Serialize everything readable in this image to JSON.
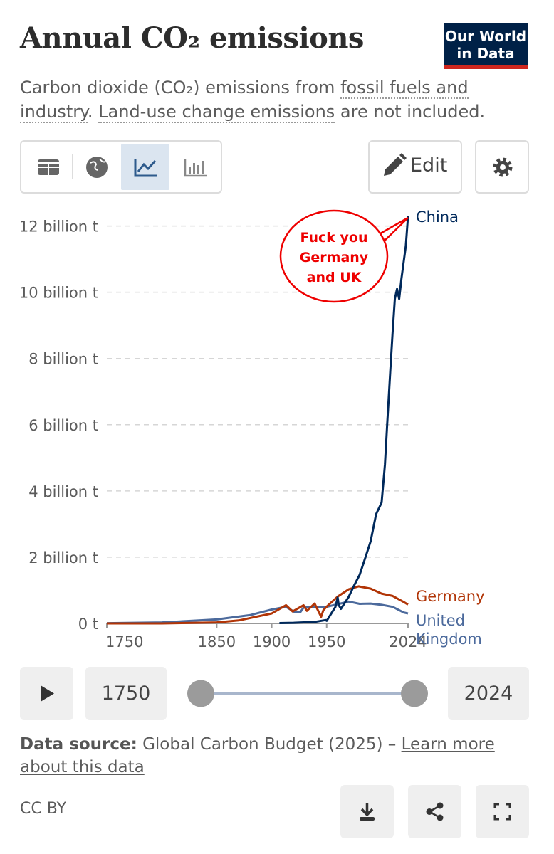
{
  "header": {
    "title": "Annual CO₂ emissions",
    "subtitle": [
      "Carbon dioxide (CO₂) emissions from ",
      "fossil fuels and industry",
      ". ",
      "Land-use change emissions",
      " are not included."
    ]
  },
  "logo": [
    "Our World",
    "in Data"
  ],
  "controls": {
    "edit": "Edit",
    "start": "1750",
    "end": "2024"
  },
  "chart_data": {
    "type": "line",
    "xlim": [
      1750,
      2024
    ],
    "xticks": [
      1750,
      1850,
      1900,
      1950,
      2024
    ],
    "ylim": [
      0,
      12.4
    ],
    "yticks": [
      {
        "value": 0,
        "label": "0 t"
      },
      {
        "value": 2,
        "label": "2 billion t"
      },
      {
        "value": 4,
        "label": "4 billion t"
      },
      {
        "value": 6,
        "label": "6 billion t"
      },
      {
        "value": 8,
        "label": "8 billion t"
      },
      {
        "value": 10,
        "label": "10 billion t"
      },
      {
        "value": 12,
        "label": "12 billion t"
      }
    ],
    "grid": true,
    "series": [
      {
        "name": "China",
        "color": "#00295b",
        "x": [
          1907,
          1920,
          1940,
          1949,
          1950,
          1958,
          1960,
          1961,
          1963,
          1970,
          1975,
          1980,
          1985,
          1990,
          1995,
          2000,
          2003,
          2005,
          2008,
          2010,
          2012,
          2014,
          2016,
          2018,
          2020,
          2022,
          2024
        ],
        "values": [
          0.01,
          0.02,
          0.05,
          0.1,
          0.08,
          0.5,
          0.78,
          0.55,
          0.44,
          0.8,
          1.15,
          1.47,
          1.97,
          2.48,
          3.3,
          3.65,
          4.8,
          6.0,
          7.7,
          8.8,
          9.8,
          10.1,
          9.8,
          10.4,
          10.9,
          11.4,
          12.3
        ]
      },
      {
        "name": "Germany",
        "color": "#b13507",
        "x": [
          1750,
          1800,
          1850,
          1870,
          1900,
          1913,
          1919,
          1929,
          1932,
          1939,
          1945,
          1947,
          1950,
          1960,
          1970,
          1979,
          1990,
          2000,
          2010,
          2020,
          2024
        ],
        "values": [
          0,
          0.001,
          0.03,
          0.09,
          0.3,
          0.55,
          0.36,
          0.55,
          0.38,
          0.6,
          0.2,
          0.4,
          0.51,
          0.81,
          1.03,
          1.12,
          1.05,
          0.9,
          0.83,
          0.65,
          0.57
        ]
      },
      {
        "name": "United Kingdom",
        "color": "#4c6a9c",
        "x": [
          1750,
          1800,
          1850,
          1880,
          1900,
          1913,
          1921,
          1926,
          1929,
          1940,
          1950,
          1960,
          1970,
          1980,
          1990,
          2000,
          2010,
          2020,
          2024
        ],
        "values": [
          0.009,
          0.03,
          0.12,
          0.25,
          0.42,
          0.5,
          0.34,
          0.34,
          0.48,
          0.5,
          0.5,
          0.58,
          0.66,
          0.59,
          0.6,
          0.56,
          0.5,
          0.33,
          0.3
        ]
      }
    ],
    "annotation": [
      "Fuck you",
      "Germany",
      "and UK"
    ]
  },
  "footer": {
    "source_label": "Data source:",
    "source": " Global Carbon Budget (2025) – ",
    "link": "Learn more about this data",
    "license": "CC BY"
  }
}
